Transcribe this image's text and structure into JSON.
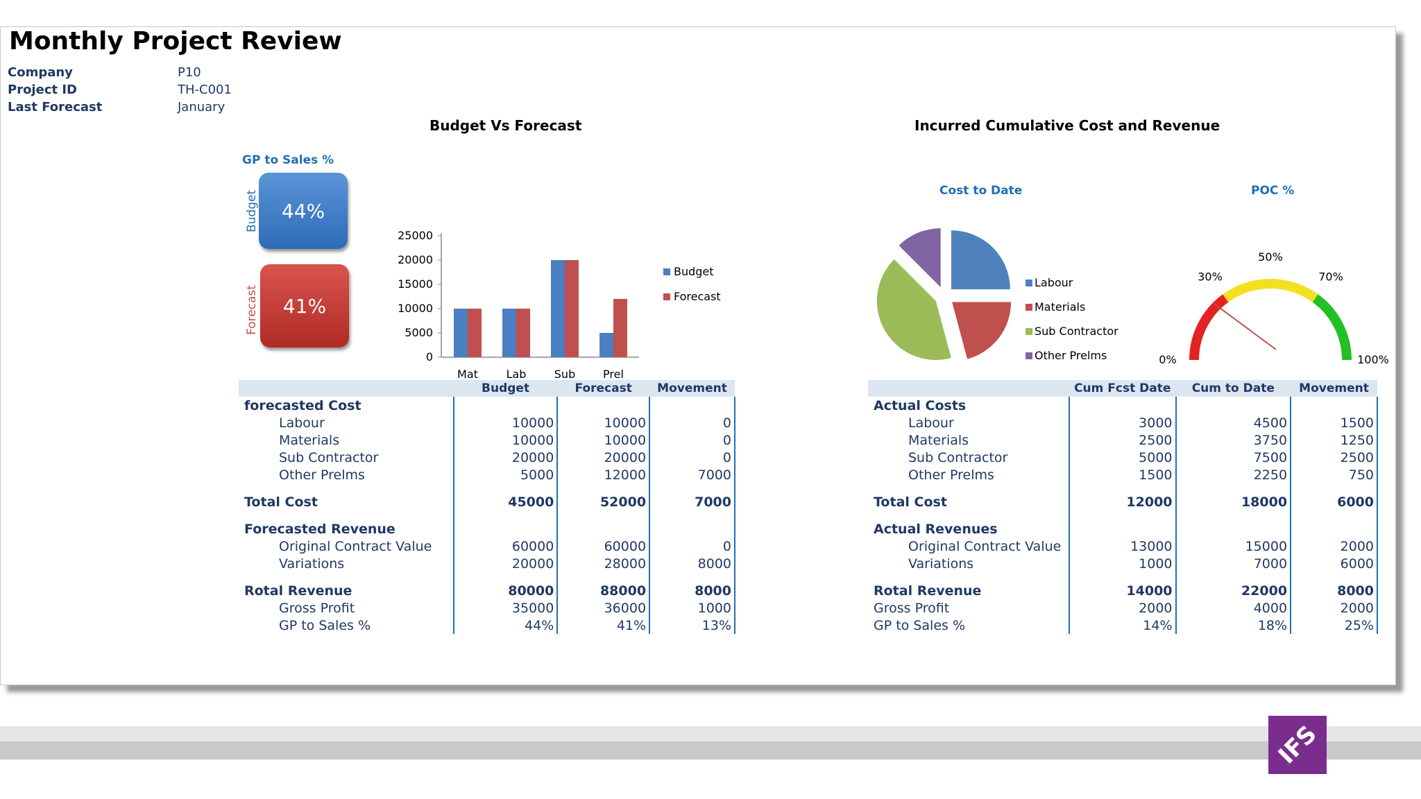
{
  "page": {
    "title": "Monthly Project Review"
  },
  "info": [
    {
      "label": "Company",
      "value": "P10"
    },
    {
      "label": "Project ID",
      "value": "TH-C001"
    },
    {
      "label": "Last Forecast",
      "value": "January"
    }
  ],
  "colors": {
    "budget": "#4a7fc1",
    "forecast": "#c0504d",
    "labour": "#4f81bd",
    "materials": "#c0504d",
    "sub": "#9bbb59",
    "other": "#8064a2",
    "accent": "#1f6fb5"
  },
  "gp_boxes": {
    "title": "GP to Sales %",
    "budget_label": "Budget",
    "budget_value": "44%",
    "forecast_label": "Forecast",
    "forecast_value": "41%"
  },
  "chart_data": [
    {
      "type": "bar",
      "title": "Budget  Vs Forecast",
      "categories": [
        "Mat",
        "Lab",
        "Sub",
        "Prel"
      ],
      "series": [
        {
          "name": "Budget",
          "values": [
            10000,
            10000,
            20000,
            5000
          ]
        },
        {
          "name": "Forecast",
          "values": [
            10000,
            10000,
            20000,
            12000
          ]
        }
      ],
      "ylim": [
        0,
        25000
      ],
      "yticks": [
        0,
        5000,
        10000,
        15000,
        20000,
        25000
      ]
    },
    {
      "type": "pie",
      "title": "Cost to Date",
      "labels": [
        "Labour",
        "Materials",
        "Sub Contractor",
        "Other Prelms"
      ],
      "values": [
        4500,
        3750,
        7500,
        2250
      ]
    },
    {
      "type": "gauge",
      "title": "POC %",
      "value": 0.25,
      "tick_labels": [
        "0%",
        "30%",
        "50%",
        "70%",
        "100%"
      ]
    }
  ],
  "right_title": "Incurred Cumulative Cost and Revenue",
  "left_table": {
    "headers": [
      "",
      "Budget",
      "Forecast",
      "Movement"
    ],
    "rows": [
      {
        "kind": "section",
        "cells": [
          "forecasted Cost",
          "",
          "",
          ""
        ]
      },
      {
        "kind": "item",
        "cells": [
          "Labour",
          "10000",
          "10000",
          "0"
        ]
      },
      {
        "kind": "item",
        "cells": [
          "Materials",
          "10000",
          "10000",
          "0"
        ]
      },
      {
        "kind": "item",
        "cells": [
          "Sub Contractor",
          "20000",
          "20000",
          "0"
        ]
      },
      {
        "kind": "item",
        "cells": [
          "Other Prelms",
          "5000",
          "12000",
          "7000"
        ]
      },
      {
        "kind": "total",
        "cells": [
          "Total Cost",
          "45000",
          "52000",
          "7000"
        ]
      },
      {
        "kind": "section",
        "cells": [
          "Forecasted Revenue",
          "",
          "",
          ""
        ]
      },
      {
        "kind": "item",
        "cells": [
          "Original Contract Value",
          "60000",
          "60000",
          "0"
        ]
      },
      {
        "kind": "item",
        "cells": [
          "Variations",
          "20000",
          "28000",
          "8000"
        ]
      },
      {
        "kind": "total",
        "cells": [
          "Rotal Revenue",
          "80000",
          "88000",
          "8000"
        ]
      },
      {
        "kind": "item",
        "cells": [
          "Gross Profit",
          "35000",
          "36000",
          "1000"
        ]
      },
      {
        "kind": "item",
        "cells": [
          "GP to Sales %",
          "44%",
          "41%",
          "13%"
        ]
      }
    ]
  },
  "right_table": {
    "headers": [
      "",
      "Cum Fcst Date",
      "Cum to Date",
      "Movement"
    ],
    "rows": [
      {
        "kind": "section",
        "cells": [
          "Actual Costs",
          "",
          "",
          ""
        ]
      },
      {
        "kind": "item",
        "cells": [
          "Labour",
          "3000",
          "4500",
          "1500"
        ]
      },
      {
        "kind": "item",
        "cells": [
          "Materials",
          "2500",
          "3750",
          "1250"
        ]
      },
      {
        "kind": "item",
        "cells": [
          "Sub Contractor",
          "5000",
          "7500",
          "2500"
        ]
      },
      {
        "kind": "item",
        "cells": [
          "Other Prelms",
          "1500",
          "2250",
          "750"
        ]
      },
      {
        "kind": "total",
        "cells": [
          "Total Cost",
          "12000",
          "18000",
          "6000"
        ]
      },
      {
        "kind": "section",
        "cells": [
          "Actual Revenues",
          "",
          "",
          ""
        ]
      },
      {
        "kind": "item",
        "cells": [
          "Original Contract Value",
          "13000",
          "15000",
          "2000"
        ]
      },
      {
        "kind": "item",
        "cells": [
          "Variations",
          "1000",
          "7000",
          "6000"
        ]
      },
      {
        "kind": "total",
        "cells": [
          "Rotal Revenue",
          "14000",
          "22000",
          "8000"
        ]
      },
      {
        "kind": "plain",
        "cells": [
          "Gross Profit",
          "2000",
          "4000",
          "2000"
        ]
      },
      {
        "kind": "plain",
        "cells": [
          "GP to Sales %",
          "14%",
          "18%",
          "25%"
        ]
      }
    ]
  },
  "logo": {
    "text": "IFS"
  }
}
